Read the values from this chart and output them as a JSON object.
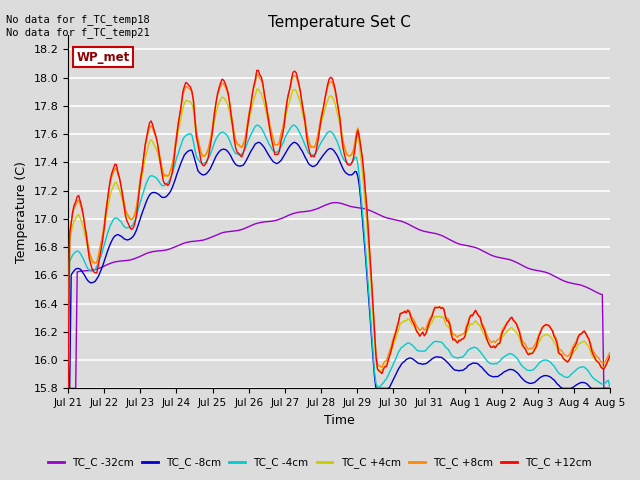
{
  "title": "Temperature Set C",
  "xlabel": "Time",
  "ylabel": "Temperature (C)",
  "ylim": [
    15.8,
    18.3
  ],
  "yticks": [
    15.8,
    16.0,
    16.2,
    16.4,
    16.6,
    16.8,
    17.0,
    17.2,
    17.4,
    17.6,
    17.8,
    18.0,
    18.2
  ],
  "xtick_labels": [
    "Jul 21",
    "Jul 22",
    "Jul 23",
    "Jul 24",
    "Jul 25",
    "Jul 26",
    "Jul 27",
    "Jul 28",
    "Jul 29",
    "Jul 30",
    "Jul 31",
    "Aug 1",
    "Aug 2",
    "Aug 3",
    "Aug 4",
    "Aug 5"
  ],
  "annotation_text": "No data for f_TC_temp18\nNo data for f_TC_temp21",
  "legend_label": "WP_met",
  "bg_color": "#dcdcdc",
  "plot_bg_color": "#dcdcdc",
  "grid_color": "#ffffff",
  "series": [
    {
      "label": "TC_C -32cm",
      "color": "#9900cc"
    },
    {
      "label": "TC_C -8cm",
      "color": "#0000cc"
    },
    {
      "label": "TC_C -4cm",
      "color": "#00cccc"
    },
    {
      "label": "TC_C +4cm",
      "color": "#cccc00"
    },
    {
      "label": "TC_C +8cm",
      "color": "#ff8800"
    },
    {
      "label": "TC_C +12cm",
      "color": "#ff0000"
    }
  ]
}
